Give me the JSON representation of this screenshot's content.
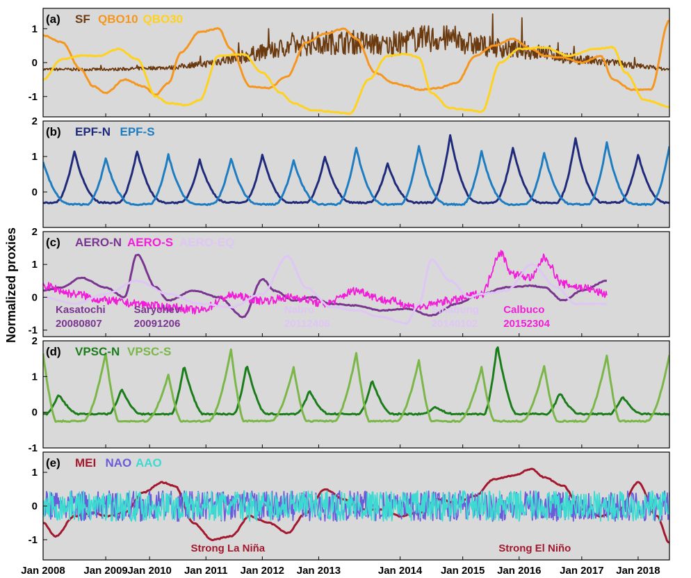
{
  "ylabel": "Normalized proxies",
  "xticks": [
    "Jan 2008",
    "Jan 2009",
    "Jan 2010",
    "Jan 2011",
    "Jan 2012",
    "Jan 2013",
    "Jan 2014",
    "Jan 2015",
    "Jan 2016",
    "Jan 2017",
    "Jan 2018"
  ],
  "chart_data": [
    {
      "type": "line",
      "panel": "(a)",
      "x_range": [
        2008.0,
        2018.0
      ],
      "ylim": [
        -1.6,
        1.6
      ],
      "yticks": [
        -1,
        0,
        1
      ],
      "series": [
        {
          "name": "SF",
          "color": "#6B3A0F",
          "style": "noisy",
          "x": [
            2008.0,
            2009.0,
            2010.0,
            2010.5,
            2011.0,
            2011.5,
            2012.0,
            2012.5,
            2013.0,
            2013.5,
            2014.0,
            2014.5,
            2015.0,
            2015.5,
            2016.0,
            2016.5,
            2017.0,
            2017.5,
            2018.0
          ],
          "y": [
            -0.2,
            -0.2,
            -0.15,
            -0.05,
            0.1,
            0.3,
            0.5,
            0.6,
            0.6,
            0.5,
            0.7,
            0.7,
            0.5,
            0.4,
            0.3,
            0.1,
            0.0,
            -0.1,
            -0.2
          ]
        },
        {
          "name": "QBO10",
          "color": "#F5961F",
          "style": "smooth",
          "x": [
            2008.0,
            2008.3,
            2008.6,
            2008.8,
            2009.0,
            2009.3,
            2009.6,
            2009.8,
            2010.0,
            2010.2,
            2010.5,
            2010.8,
            2011.0,
            2011.3,
            2011.6,
            2011.9,
            2012.2,
            2012.5,
            2012.8,
            2013.0,
            2013.3,
            2013.6,
            2013.8,
            2014.0,
            2014.3,
            2014.6,
            2014.9,
            2015.2,
            2015.5,
            2015.8,
            2016.0,
            2016.3,
            2016.6,
            2016.9,
            2017.1,
            2017.4,
            2017.7,
            2018.0
          ],
          "y": [
            0.8,
            0.6,
            -0.2,
            -0.7,
            -0.9,
            -0.5,
            -0.7,
            -0.95,
            -0.6,
            0.3,
            0.9,
            1.0,
            0.4,
            -0.7,
            -0.75,
            -0.4,
            0.6,
            0.85,
            1.0,
            0.7,
            -0.3,
            -0.6,
            -0.7,
            -0.8,
            -0.75,
            -0.6,
            0.2,
            0.5,
            0.7,
            0.4,
            0.2,
            0.15,
            0.0,
            0.2,
            -0.5,
            -0.8,
            -0.8,
            1.25
          ]
        },
        {
          "name": "QBO30",
          "color": "#FFD21F",
          "style": "smooth",
          "x": [
            2008.0,
            2008.3,
            2008.6,
            2008.9,
            2009.2,
            2009.5,
            2009.8,
            2010.0,
            2010.3,
            2010.5,
            2010.8,
            2011.2,
            2011.5,
            2011.8,
            2012.0,
            2012.3,
            2012.6,
            2012.9,
            2013.2,
            2013.5,
            2013.8,
            2014.0,
            2014.2,
            2014.5,
            2014.8,
            2015.0,
            2015.3,
            2015.6,
            2016.0,
            2016.4,
            2016.8,
            2017.1,
            2017.3,
            2017.6,
            2018.0
          ],
          "y": [
            -0.5,
            0.1,
            0.2,
            0.2,
            0.4,
            0.1,
            -1.0,
            -1.2,
            -1.25,
            -1.1,
            0.2,
            0.25,
            -0.3,
            -0.9,
            -1.2,
            -1.4,
            -1.45,
            -1.5,
            -0.5,
            0.2,
            0.25,
            0.15,
            -0.9,
            -1.35,
            -1.4,
            -1.45,
            0.0,
            0.4,
            0.45,
            0.2,
            0.4,
            0.45,
            -0.3,
            -1.1,
            -1.3
          ]
        }
      ]
    },
    {
      "type": "line",
      "panel": "(b)",
      "x_range": [
        2008.0,
        2018.0
      ],
      "ylim": [
        -1.0,
        2.0
      ],
      "yticks": [
        0,
        1,
        2
      ],
      "series": [
        {
          "name": "EPF-N",
          "color": "#1F2A7A",
          "style": "seasonal",
          "phase": 0.2,
          "baseline": -0.3,
          "peaks": [
            0.85,
            1.15,
            1.15,
            0.9,
            1.05,
            1.0,
            0.8,
            1.6,
            1.25,
            1.5,
            1.05,
            0.6
          ]
        },
        {
          "name": "EPF-S",
          "color": "#1E7CC0",
          "style": "seasonal",
          "phase": 0.7,
          "baseline": -0.35,
          "peaks": [
            0.85,
            0.95,
            1.05,
            0.95,
            0.9,
            1.25,
            1.3,
            1.15,
            1.1,
            1.4,
            1.3
          ]
        }
      ]
    },
    {
      "type": "line",
      "panel": "(c)",
      "x_range": [
        2008.0,
        2018.0
      ],
      "ylim": [
        -1.2,
        2.0
      ],
      "yticks": [
        -1,
        0,
        1,
        2
      ],
      "series": [
        {
          "name": "AERO-N",
          "color": "#7A3590",
          "style": "smooth",
          "x": [
            2008.0,
            2008.3,
            2008.6,
            2009.0,
            2009.3,
            2009.5,
            2009.8,
            2010.0,
            2010.4,
            2010.8,
            2011.2,
            2011.5,
            2011.7,
            2012.0,
            2012.3,
            2012.6,
            2013.0,
            2013.4,
            2013.8,
            2014.2,
            2014.6,
            2015.0,
            2015.4,
            2015.8,
            2016.0,
            2016.3,
            2016.6,
            2017.0
          ],
          "y": [
            0.2,
            0.3,
            0.6,
            0.3,
            0.0,
            1.3,
            0.3,
            -0.1,
            0.2,
            0.0,
            -0.6,
            0.55,
            0.2,
            -0.1,
            0.0,
            -0.2,
            -0.25,
            -0.4,
            -0.35,
            -0.55,
            -0.2,
            0.1,
            0.3,
            0.35,
            0.3,
            -0.1,
            0.2,
            0.5
          ]
        },
        {
          "name": "AERO-S",
          "color": "#F01ED8",
          "style": "noisy",
          "x": [
            2008.0,
            2008.5,
            2009.0,
            2009.5,
            2010.0,
            2010.5,
            2011.0,
            2011.5,
            2012.0,
            2012.5,
            2013.0,
            2013.5,
            2014.0,
            2014.5,
            2015.0,
            2015.3,
            2015.5,
            2015.8,
            2016.0,
            2016.3,
            2016.6,
            2017.0
          ],
          "y": [
            0.35,
            0.1,
            -0.1,
            -0.2,
            -0.3,
            -0.4,
            0.05,
            -0.1,
            0.0,
            -0.2,
            0.2,
            -0.1,
            -0.3,
            -0.1,
            0.1,
            1.35,
            0.7,
            0.6,
            1.2,
            0.4,
            0.3,
            0.1
          ]
        },
        {
          "name": "AERO-EQ",
          "color": "#DEC6F5",
          "style": "smooth",
          "x": [
            2008.0,
            2008.5,
            2009.0,
            2009.5,
            2010.0,
            2010.5,
            2011.0,
            2011.5,
            2011.9,
            2012.2,
            2012.6,
            2013.0,
            2013.4,
            2013.8,
            2014.0,
            2014.2,
            2014.5,
            2014.8,
            2015.0,
            2015.4,
            2015.8,
            2016.2,
            2016.5,
            2017.0
          ],
          "y": [
            0.0,
            -0.2,
            0.1,
            0.5,
            0.1,
            -0.2,
            -0.3,
            0.1,
            1.25,
            0.3,
            -0.3,
            -0.4,
            -0.6,
            -0.8,
            -0.2,
            1.15,
            0.5,
            0.0,
            0.1,
            0.2,
            1.0,
            0.3,
            -0.2,
            -0.2
          ]
        }
      ],
      "annotations": [
        {
          "name": "Kasatochi",
          "date": "20080807",
          "color": "#7A3590",
          "x": 2008.0
        },
        {
          "name": "Sarychev",
          "date": "20091206",
          "color": "#7A3590",
          "x": 2009.25
        },
        {
          "name": "Nabro",
          "date": "20112406",
          "color": "#DEC6F5",
          "x": 2011.65
        },
        {
          "name": "Sinabung",
          "date": "20140102",
          "color": "#DEC6F5",
          "x": 2014.0
        },
        {
          "name": "Calbuco",
          "date": "20152304",
          "color": "#F01ED8",
          "x": 2015.15
        }
      ]
    },
    {
      "type": "line",
      "panel": "(d)",
      "x_range": [
        2008.0,
        2018.0
      ],
      "ylim": [
        -1.0,
        2.0
      ],
      "yticks": [
        -1,
        0,
        1,
        2
      ],
      "series": [
        {
          "name": "VPSC-N",
          "color": "#1A7D1A",
          "style": "seasonalN",
          "phase": 0.05,
          "baseline": -0.05,
          "peaks": [
            0.8,
            0.5,
            0.65,
            1.3,
            1.35,
            0.6,
            0.9,
            0.15,
            1.9,
            0.55,
            0.45
          ]
        },
        {
          "name": "VPSC-S",
          "color": "#7AB648",
          "style": "seasonalS",
          "phase": 0.65,
          "baseline": -0.25,
          "peaks": [
            1.65,
            1.65,
            1.05,
            1.75,
            1.25,
            1.65,
            1.45,
            1.25,
            1.3,
            1.6
          ]
        }
      ]
    },
    {
      "type": "line",
      "panel": "(e)",
      "x_range": [
        2008.0,
        2018.0
      ],
      "ylim": [
        -1.6,
        1.6
      ],
      "yticks": [
        -1,
        0,
        1
      ],
      "series": [
        {
          "name": "MEI",
          "color": "#A3182E",
          "style": "smooth",
          "x": [
            2008.0,
            2008.2,
            2008.5,
            2008.8,
            2009.0,
            2009.3,
            2009.6,
            2009.9,
            2010.1,
            2010.4,
            2010.7,
            2011.0,
            2011.3,
            2011.6,
            2011.9,
            2012.2,
            2012.5,
            2012.8,
            2013.1,
            2013.4,
            2013.7,
            2014.0,
            2014.3,
            2014.6,
            2014.9,
            2015.2,
            2015.5,
            2015.8,
            2016.0,
            2016.3,
            2016.6,
            2016.9,
            2017.2,
            2017.5,
            2017.8,
            2018.0
          ],
          "y": [
            -0.5,
            -0.9,
            -0.3,
            -0.2,
            -0.3,
            -0.2,
            0.4,
            0.7,
            0.6,
            -0.5,
            -1.0,
            -0.9,
            -0.3,
            -0.5,
            -0.8,
            -0.2,
            0.5,
            0.2,
            -0.1,
            -0.1,
            -0.3,
            -0.2,
            0.2,
            0.1,
            0.3,
            0.8,
            0.9,
            1.1,
            0.85,
            0.6,
            -0.1,
            -0.3,
            -0.1,
            0.7,
            -0.3,
            -1.1
          ]
        },
        {
          "name": "NAO",
          "color": "#6A5BD9",
          "style": "noisy",
          "x": [
            2008.0,
            2018.0
          ],
          "y": [
            0.0,
            0.0
          ]
        },
        {
          "name": "AAO",
          "color": "#3DDAD2",
          "style": "noisy",
          "x": [
            2008.0,
            2018.0
          ],
          "y": [
            0.0,
            0.0
          ]
        }
      ],
      "annotations": [
        {
          "text": "Strong La Niña",
          "color": "#A3182E",
          "x": 2010.95
        },
        {
          "text": "Strong El Niño",
          "color": "#A3182E",
          "x": 2015.85
        }
      ]
    }
  ]
}
